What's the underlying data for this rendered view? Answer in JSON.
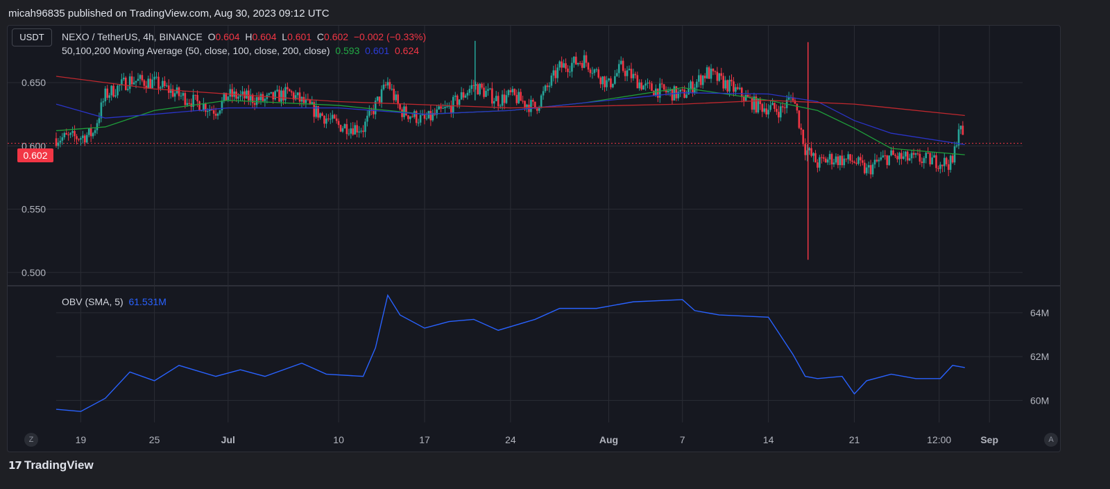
{
  "header": {
    "published_line": "micah96835 published on TradingView.com, Aug 30, 2023 09:12 UTC"
  },
  "toolbar": {
    "currency_label": "USDT"
  },
  "legend": {
    "symbol": "NEXO / TetherUS, 4h, BINANCE",
    "o_label": "O",
    "o_value": "0.604",
    "h_label": "H",
    "h_value": "0.604",
    "l_label": "L",
    "l_value": "0.601",
    "c_label": "C",
    "c_value": "0.602",
    "change": "−0.002 (−0.33%)",
    "ma_title": "50,100,200 Moving Average (50, close, 100, close, 200, close)",
    "ma50_value": "0.593",
    "ma100_value": "0.601",
    "ma200_value": "0.624",
    "obv_title": "OBV (SMA, 5)",
    "obv_value": "61.531M"
  },
  "price_axis": {
    "ticks": [
      "0.650",
      "0.600",
      "0.550",
      "0.500"
    ],
    "current_label": "0.602"
  },
  "obv_axis": {
    "ticks": [
      "64M",
      "62M",
      "60M"
    ]
  },
  "time_axis": {
    "ticks": [
      "19",
      "25",
      "Jul",
      "10",
      "17",
      "24",
      "Aug",
      "7",
      "14",
      "21",
      "12:00",
      "Sep"
    ]
  },
  "corner_buttons": {
    "left": "Z",
    "right": "A"
  },
  "footer": {
    "brand": "TradingView",
    "logo_glyph": "𝟭𝟳"
  },
  "colors": {
    "up": "#26a69a",
    "down": "#f23645",
    "ma50": "#1f9e3a",
    "ma100": "#2a34c8",
    "ma200": "#c0282e",
    "obv": "#2962ff",
    "grid": "#2a2c34",
    "axis_text": "#b2b5be"
  },
  "chart_data": [
    {
      "type": "candlestick",
      "title": "NEXO / TetherUS, 4h, BINANCE",
      "ylim": [
        0.49,
        0.695
      ],
      "y_ticks": [
        0.65,
        0.6,
        0.55,
        0.5
      ],
      "current_price": 0.602,
      "low_wick_extreme": 0.51,
      "high_wick_extreme": 0.683,
      "x_tick_labels": [
        "19",
        "25",
        "Jul",
        "10",
        "17",
        "24",
        "Aug",
        "7",
        "14",
        "21",
        "12:00",
        "Sep"
      ],
      "close_path_approx": [
        {
          "date": "Jun 17",
          "close": 0.606
        },
        {
          "date": "Jun 19",
          "close": 0.607
        },
        {
          "date": "Jun 20",
          "close": 0.61
        },
        {
          "date": "Jun 21",
          "close": 0.64
        },
        {
          "date": "Jun 23",
          "close": 0.652
        },
        {
          "date": "Jun 25",
          "close": 0.65
        },
        {
          "date": "Jun 27",
          "close": 0.64
        },
        {
          "date": "Jun 30",
          "close": 0.628
        },
        {
          "date": "Jul 1",
          "close": 0.64
        },
        {
          "date": "Jul 4",
          "close": 0.636
        },
        {
          "date": "Jul 6",
          "close": 0.642
        },
        {
          "date": "Jul 8",
          "close": 0.628
        },
        {
          "date": "Jul 10",
          "close": 0.616
        },
        {
          "date": "Jul 12",
          "close": 0.614
        },
        {
          "date": "Jul 14",
          "close": 0.65
        },
        {
          "date": "Jul 15",
          "close": 0.628
        },
        {
          "date": "Jul 17",
          "close": 0.62
        },
        {
          "date": "Jul 19",
          "close": 0.63
        },
        {
          "date": "Jul 21",
          "close": 0.648
        },
        {
          "date": "Jul 23",
          "close": 0.636
        },
        {
          "date": "Jul 24",
          "close": 0.64
        },
        {
          "date": "Jul 26",
          "close": 0.63
        },
        {
          "date": "Jul 28",
          "close": 0.662
        },
        {
          "date": "Jul 30",
          "close": 0.668
        },
        {
          "date": "Aug 1",
          "close": 0.648
        },
        {
          "date": "Aug 2",
          "close": 0.662
        },
        {
          "date": "Aug 4",
          "close": 0.646
        },
        {
          "date": "Aug 7",
          "close": 0.64
        },
        {
          "date": "Aug 9",
          "close": 0.658
        },
        {
          "date": "Aug 11",
          "close": 0.646
        },
        {
          "date": "Aug 13",
          "close": 0.632
        },
        {
          "date": "Aug 15",
          "close": 0.628
        },
        {
          "date": "Aug 16",
          "close": 0.64
        },
        {
          "date": "Aug 17",
          "close": 0.598
        },
        {
          "date": "Aug 18",
          "close": 0.586
        },
        {
          "date": "Aug 19",
          "close": 0.59
        },
        {
          "date": "Aug 21",
          "close": 0.588
        },
        {
          "date": "Aug 22",
          "close": 0.58
        },
        {
          "date": "Aug 23",
          "close": 0.588
        },
        {
          "date": "Aug 24",
          "close": 0.592
        },
        {
          "date": "Aug 25",
          "close": 0.59
        },
        {
          "date": "Aug 27",
          "close": 0.589
        },
        {
          "date": "Aug 29",
          "close": 0.586
        },
        {
          "date": "Aug 29 12:00",
          "close": 0.616
        },
        {
          "date": "Aug 30",
          "close": 0.602
        }
      ],
      "series": [
        {
          "name": "MA 50",
          "x": [
            "Jun 17",
            "Jun 21",
            "Jun 25",
            "Jul 1",
            "Jul 10",
            "Jul 17",
            "Jul 24",
            "Jul 30",
            "Aug 7",
            "Aug 14",
            "Aug 18",
            "Aug 21",
            "Aug 24",
            "Aug 30"
          ],
          "values": [
            0.612,
            0.615,
            0.628,
            0.636,
            0.632,
            0.625,
            0.628,
            0.634,
            0.646,
            0.636,
            0.628,
            0.614,
            0.598,
            0.593
          ]
        },
        {
          "name": "MA 100",
          "x": [
            "Jun 17",
            "Jun 21",
            "Jun 25",
            "Jul 1",
            "Jul 10",
            "Jul 17",
            "Jul 24",
            "Jul 30",
            "Aug 7",
            "Aug 14",
            "Aug 18",
            "Aug 21",
            "Aug 24",
            "Aug 30"
          ],
          "values": [
            0.633,
            0.622,
            0.625,
            0.63,
            0.63,
            0.625,
            0.628,
            0.634,
            0.642,
            0.641,
            0.635,
            0.62,
            0.61,
            0.601
          ]
        },
        {
          "name": "MA 200",
          "x": [
            "Jun 17",
            "Jun 25",
            "Jul 10",
            "Jul 24",
            "Aug 7",
            "Aug 14",
            "Aug 21",
            "Aug 30"
          ],
          "values": [
            0.655,
            0.645,
            0.635,
            0.63,
            0.633,
            0.636,
            0.633,
            0.624
          ]
        }
      ]
    },
    {
      "type": "line",
      "title": "OBV (SMA, 5)",
      "ylabel": "",
      "ylim": [
        59,
        65.2
      ],
      "y_ticks": [
        64,
        62,
        60
      ],
      "units": "M",
      "current_value": 61.531,
      "series": [
        {
          "name": "OBV",
          "x": [
            "Jun 17",
            "Jun 19",
            "Jun 21",
            "Jun 23",
            "Jun 25",
            "Jun 27",
            "Jun 30",
            "Jul 2",
            "Jul 4",
            "Jul 7",
            "Jul 9",
            "Jul 12",
            "Jul 13",
            "Jul 14",
            "Jul 15",
            "Jul 17",
            "Jul 19",
            "Jul 21",
            "Jul 23",
            "Jul 26",
            "Jul 28",
            "Jul 31",
            "Aug 3",
            "Aug 7",
            "Aug 8",
            "Aug 10",
            "Aug 14",
            "Aug 16",
            "Aug 17",
            "Aug 18",
            "Aug 20",
            "Aug 21",
            "Aug 22",
            "Aug 24",
            "Aug 26",
            "Aug 28",
            "Aug 29",
            "Aug 30"
          ],
          "values": [
            59.6,
            59.5,
            60.1,
            61.3,
            60.9,
            61.6,
            61.1,
            61.4,
            61.1,
            61.7,
            61.2,
            61.1,
            62.4,
            64.8,
            63.9,
            63.3,
            63.6,
            63.7,
            63.2,
            63.7,
            64.2,
            64.2,
            64.5,
            64.6,
            64.1,
            63.9,
            63.8,
            62.1,
            61.1,
            61.0,
            61.1,
            60.3,
            60.9,
            61.2,
            61.0,
            61.0,
            61.6,
            61.5
          ]
        }
      ]
    }
  ]
}
